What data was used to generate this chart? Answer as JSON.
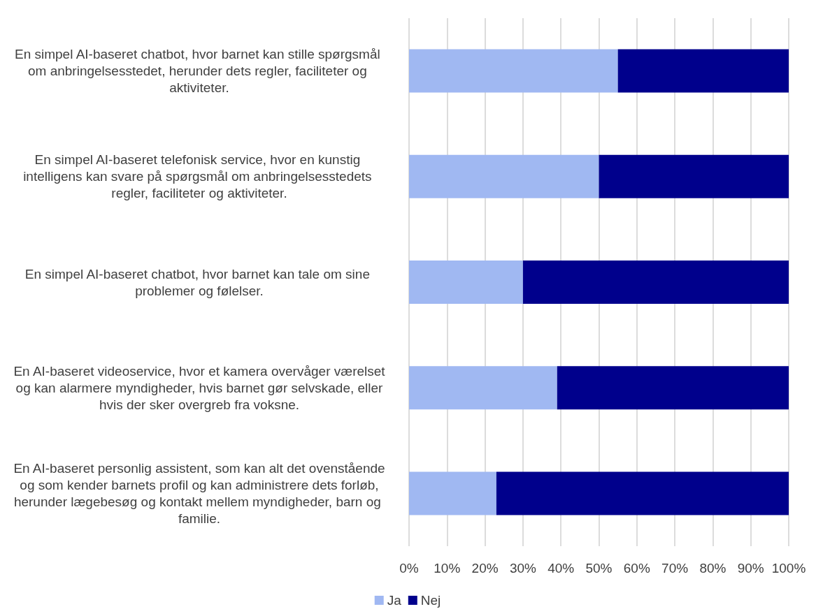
{
  "chart_data": {
    "type": "bar",
    "orientation": "horizontal",
    "stacked": true,
    "categories": [
      "En simpel AI-baseret chatbot, hvor barnet kan stille spørgsmål om anbringelsesstedet, herunder dets regler, faciliteter og aktiviteter.",
      "En simpel AI-baseret telefonisk service, hvor en kunstig intelligens kan svare på spørgsmål om anbringelsesstedets regler, faciliteter og aktiviteter.",
      "En simpel AI-baseret chatbot, hvor barnet kan tale om sine problemer og følelser.",
      "En AI-baseret videoservice, hvor et kamera overvåger værelset og kan alarmere myndigheder, hvis barnet gør selvskade, eller hvis der sker overgreb fra voksne.",
      "En AI-baseret personlig assistent, som kan alt det ovenstående og som kender barnets profil og kan administrere dets forløb, herunder lægebesøg og kontakt mellem myndigheder, barn og familie."
    ],
    "series": [
      {
        "name": "Ja",
        "color": "#a0b8f2",
        "values": [
          55,
          50,
          30,
          39,
          23
        ]
      },
      {
        "name": "Nej",
        "color": "#00008c",
        "values": [
          45,
          50,
          70,
          61,
          77
        ]
      }
    ],
    "xlim": [
      0,
      100
    ],
    "xticks": [
      {
        "value": 0,
        "label": "0%"
      },
      {
        "value": 10,
        "label": "10%"
      },
      {
        "value": 20,
        "label": "20%"
      },
      {
        "value": 30,
        "label": "30%"
      },
      {
        "value": 40,
        "label": "40%"
      },
      {
        "value": 50,
        "label": "50%"
      },
      {
        "value": 60,
        "label": "60%"
      },
      {
        "value": 70,
        "label": "70%"
      },
      {
        "value": 80,
        "label": "80%"
      },
      {
        "value": 90,
        "label": "90%"
      },
      {
        "value": 100,
        "label": "100%"
      }
    ],
    "grid": "x",
    "legend": "bottom"
  }
}
